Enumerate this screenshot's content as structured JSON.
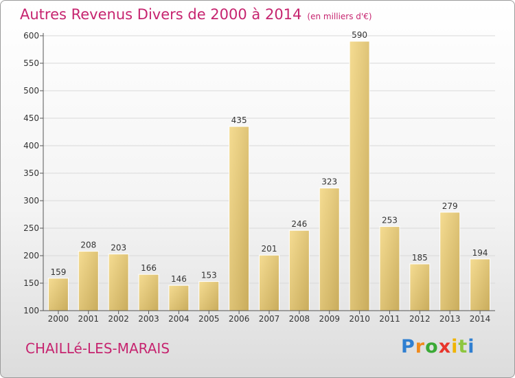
{
  "header": {
    "title": "Autres Revenus Divers de 2000 à 2014",
    "unit": "(en milliers d'€)"
  },
  "footer": {
    "city": "CHAILLé-LES-MARAIS",
    "logo_letters": [
      "P",
      "r",
      "o",
      "x",
      "i",
      "t",
      "i"
    ],
    "logo_colors": [
      "#2f7fd1",
      "#f08a1c",
      "#3aa935",
      "#e8352b",
      "#f0b400",
      "#8ec63f",
      "#2f7fd1"
    ]
  },
  "colors": {
    "title": "#c6246f",
    "bar_light": "#f5dc92",
    "bar_dark": "#c9ac5c",
    "grid": "#d9d9d9"
  },
  "chart_data": {
    "type": "bar",
    "categories": [
      "2000",
      "2001",
      "2002",
      "2003",
      "2004",
      "2005",
      "2006",
      "2007",
      "2008",
      "2009",
      "2010",
      "2011",
      "2012",
      "2013",
      "2014"
    ],
    "values": [
      159,
      208,
      203,
      166,
      146,
      153,
      435,
      201,
      246,
      323,
      590,
      253,
      185,
      279,
      194
    ],
    "data_labels": [
      "159",
      "208",
      "203",
      "166",
      "146",
      "153",
      "435",
      "201",
      "246",
      "323",
      "590",
      "253",
      "185",
      "279",
      "194"
    ],
    "yticks": [
      "100",
      "150",
      "200",
      "250",
      "300",
      "350",
      "400",
      "450",
      "500",
      "550",
      "600"
    ],
    "ylim": [
      100,
      600
    ],
    "grid": true
  }
}
